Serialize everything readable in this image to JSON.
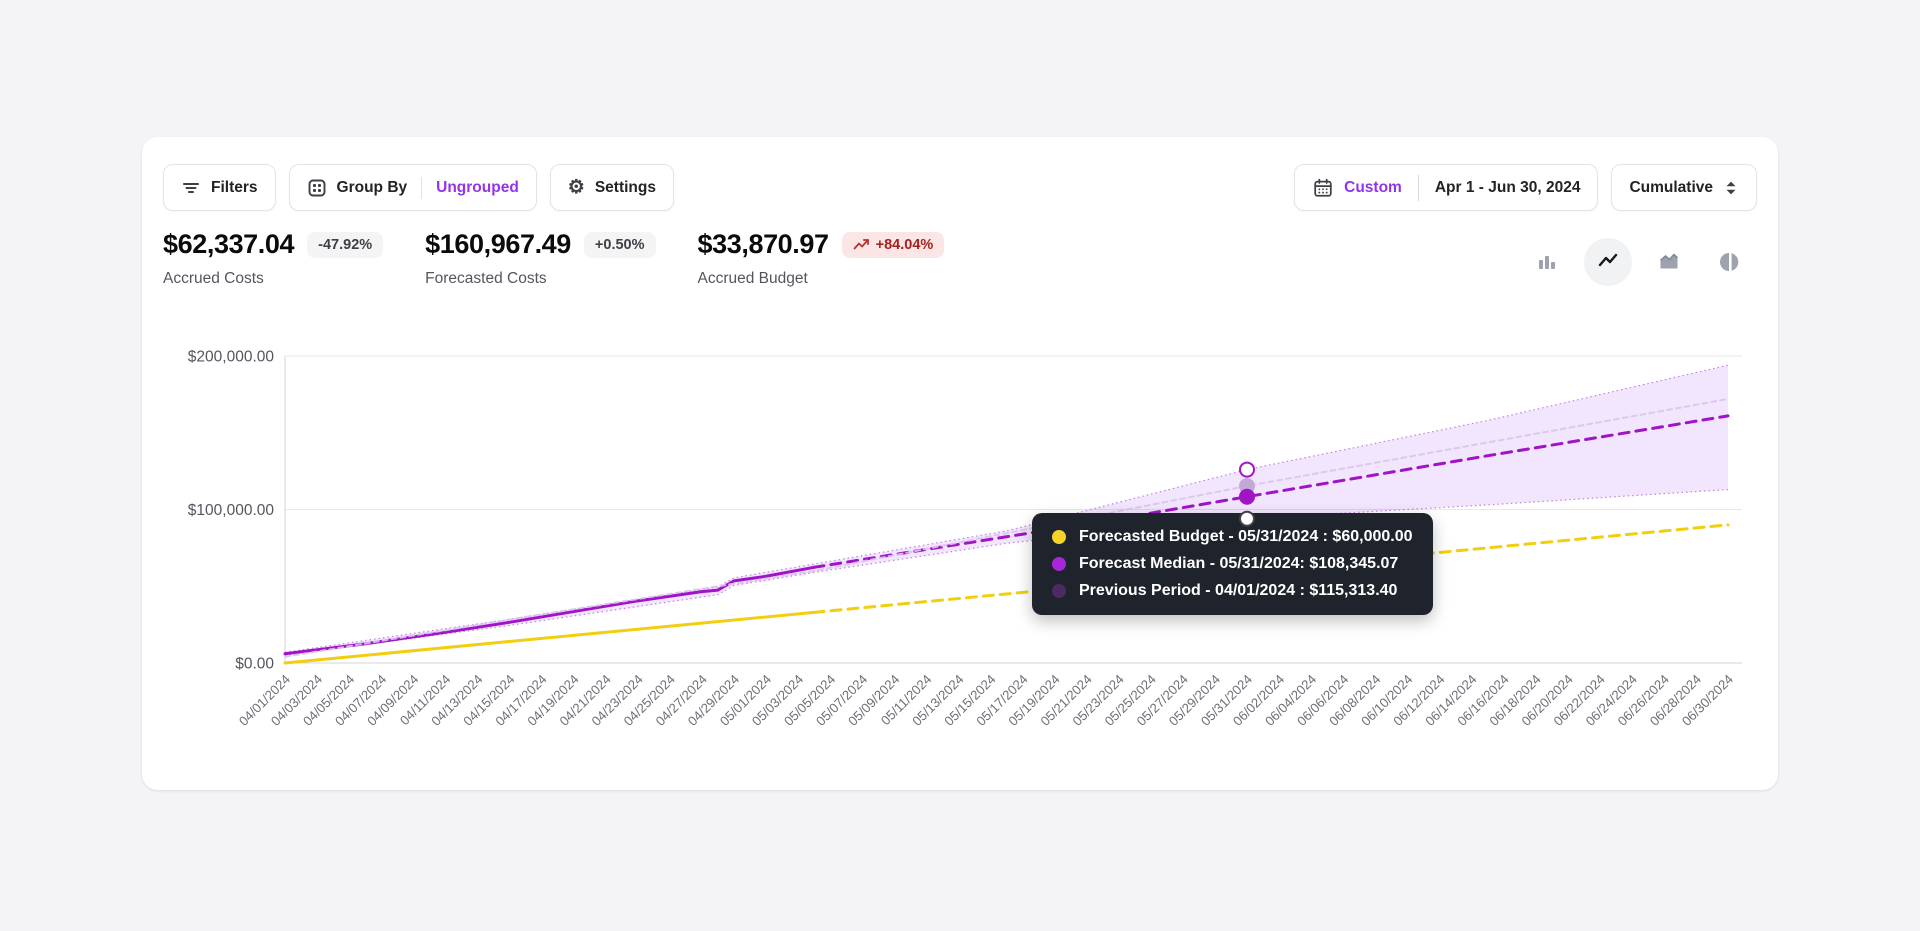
{
  "toolbar": {
    "filters_label": "Filters",
    "group_by_label": "Group By",
    "group_by_value": "Ungrouped",
    "settings_label": "Settings",
    "date_mode": "Custom",
    "date_range": "Apr 1 - Jun 30, 2024",
    "aggregation": "Cumulative"
  },
  "kpis": [
    {
      "value": "$62,337.04",
      "delta": "-47.92%",
      "label": "Accrued Costs",
      "delta_style": "neutral"
    },
    {
      "value": "$160,967.49",
      "delta": "+0.50%",
      "label": "Forecasted Costs",
      "delta_style": "neutral"
    },
    {
      "value": "$33,870.97",
      "delta": "+84.04%",
      "label": "Accrued Budget",
      "delta_style": "danger",
      "delta_icon": "trending-up"
    }
  ],
  "chart_toggles": [
    {
      "name": "bar",
      "active": false
    },
    {
      "name": "line",
      "active": true
    },
    {
      "name": "area",
      "active": false
    },
    {
      "name": "pie",
      "active": false
    }
  ],
  "colors": {
    "accent_purple": "#9333ea",
    "series_purple": "#A114C6",
    "series_yellow": "#F2CE10",
    "band_fill": "rgba(168,85,247,0.15)",
    "band_edge": "#C77CE8",
    "previous_period": "#D9C4EA",
    "tooltip_bg": "#1e232c"
  },
  "chart_data": {
    "type": "line",
    "x_start_date": "04/01/2024",
    "x_end_date": "06/30/2024",
    "x_total_days": 90,
    "x_tick_step_days": 2,
    "x_tick_labels": [
      "04/01/2024",
      "04/03/2024",
      "04/05/2024",
      "04/07/2024",
      "04/09/2024",
      "04/11/2024",
      "04/13/2024",
      "04/15/2024",
      "04/17/2024",
      "04/19/2024",
      "04/21/2024",
      "04/23/2024",
      "04/25/2024",
      "04/27/2024",
      "04/29/2024",
      "05/01/2024",
      "05/03/2024",
      "05/05/2024",
      "05/07/2024",
      "05/09/2024",
      "05/11/2024",
      "05/13/2024",
      "05/15/2024",
      "05/17/2024",
      "05/19/2024",
      "05/21/2024",
      "05/23/2024",
      "05/25/2024",
      "05/27/2024",
      "05/29/2024",
      "05/31/2024",
      "06/02/2024",
      "06/04/2024",
      "06/06/2024",
      "06/08/2024",
      "06/10/2024",
      "06/12/2024",
      "06/14/2024",
      "06/16/2024",
      "06/18/2024",
      "06/20/2024",
      "06/22/2024",
      "06/24/2024",
      "06/26/2024",
      "06/28/2024",
      "06/30/2024"
    ],
    "ylim": [
      0,
      200000
    ],
    "y_ticks": [
      {
        "value": 0,
        "label": "$0.00"
      },
      {
        "value": 100000,
        "label": "$100,000.00"
      },
      {
        "value": 200000,
        "label": "$200,000.00"
      }
    ],
    "grid": "horizontal",
    "forecast_start_day": 33,
    "series": [
      {
        "name": "Accrued Costs",
        "color": "#A114C6",
        "style": "solid",
        "width": 3,
        "points": [
          [
            0,
            6000
          ],
          [
            5,
            12500
          ],
          [
            10,
            20000
          ],
          [
            14,
            26500
          ],
          [
            18,
            33500
          ],
          [
            22,
            40500
          ],
          [
            26,
            46500
          ],
          [
            27,
            47500
          ],
          [
            28,
            53500
          ],
          [
            30,
            56500
          ],
          [
            33,
            62337
          ]
        ]
      },
      {
        "name": "Forecast Median",
        "color": "#A114C6",
        "style": "dashed",
        "width": 3,
        "points": [
          [
            33,
            62337
          ],
          [
            40,
            74000
          ],
          [
            50,
            90500
          ],
          [
            60,
            108345
          ],
          [
            75,
            135000
          ],
          [
            90,
            161000
          ]
        ]
      },
      {
        "name": "Forecasted Budget",
        "color": "#F2CE10",
        "style": "solid",
        "width": 3,
        "points": [
          [
            0,
            0
          ],
          [
            33,
            33000
          ]
        ]
      },
      {
        "name": "Forecasted Budget (projection)",
        "color": "#F2CE10",
        "style": "dashed",
        "width": 3,
        "points": [
          [
            33,
            33000
          ],
          [
            60,
            60000
          ],
          [
            90,
            90000
          ]
        ]
      },
      {
        "name": "Previous Period",
        "color": "#D9C4EA",
        "style": "dashed",
        "width": 2,
        "opacity": 0.9,
        "points": [
          [
            0,
            4000
          ],
          [
            15,
            30000
          ],
          [
            33,
            60000
          ],
          [
            60,
            115313
          ],
          [
            90,
            172000
          ]
        ]
      }
    ],
    "band": {
      "name": "Forecast Range",
      "fill": "rgba(168,85,247,0.15)",
      "edge_color": "#C77CE8",
      "upper": [
        [
          0,
          7000
        ],
        [
          14,
          28500
        ],
        [
          27,
          49500
        ],
        [
          28,
          55500
        ],
        [
          33,
          64500
        ],
        [
          45,
          86000
        ],
        [
          60,
          126000
        ],
        [
          75,
          158000
        ],
        [
          90,
          194000
        ]
      ],
      "lower": [
        [
          0,
          5000
        ],
        [
          14,
          24500
        ],
        [
          27,
          44500
        ],
        [
          28,
          50500
        ],
        [
          33,
          59000
        ],
        [
          45,
          78000
        ],
        [
          60,
          94000
        ],
        [
          75,
          103000
        ],
        [
          90,
          113000
        ]
      ]
    },
    "hover": {
      "day": 60,
      "date": "05/31/2024",
      "markers": [
        {
          "value": 126000,
          "type": "open",
          "color": "#A114C6"
        },
        {
          "value": 115313,
          "type": "filled",
          "color": "#C2A9D6"
        },
        {
          "value": 108345,
          "type": "filled",
          "color": "#A114C6"
        },
        {
          "value": 94000,
          "type": "open",
          "color": "#3F3F46"
        }
      ]
    },
    "tooltip": {
      "rows": [
        {
          "dot_color": "#F5D327",
          "series": "Forecasted Budget",
          "text": "Forecasted Budget - 05/31/2024 : $60,000.00"
        },
        {
          "dot_color": "#A826D9",
          "series": "Forecast Median",
          "text": "Forecast Median - 05/31/2024: $108,345.07"
        },
        {
          "dot_color": "#4C2A63",
          "series": "Previous Period",
          "text": "Previous Period - 04/01/2024 : $115,313.40"
        }
      ]
    }
  }
}
